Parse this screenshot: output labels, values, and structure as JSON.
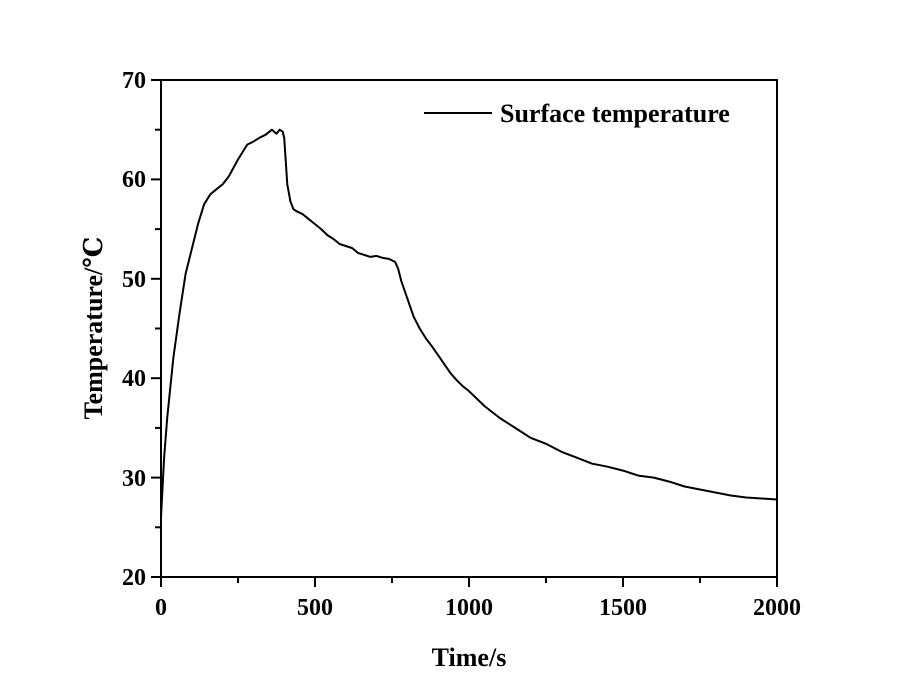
{
  "chart_data": {
    "type": "line",
    "xlabel": "Time/s",
    "ylabel": "Temperature/℃",
    "xlim": [
      0,
      2000
    ],
    "ylim": [
      20,
      70
    ],
    "x_ticks": [
      "0",
      "500",
      "1000",
      "1500",
      "2000"
    ],
    "y_ticks": [
      "20",
      "30",
      "40",
      "50",
      "60",
      "70"
    ],
    "grid": false,
    "legend_position": "top-right",
    "line_color": "#000000",
    "series": [
      {
        "name": "Surface temperature",
        "x": [
          0,
          10,
          20,
          40,
          60,
          80,
          100,
          120,
          140,
          160,
          180,
          200,
          220,
          250,
          280,
          300,
          320,
          340,
          360,
          375,
          385,
          395,
          400,
          410,
          420,
          430,
          440,
          460,
          480,
          500,
          520,
          540,
          560,
          580,
          600,
          620,
          640,
          660,
          680,
          700,
          720,
          740,
          760,
          770,
          780,
          800,
          820,
          840,
          860,
          880,
          900,
          920,
          940,
          960,
          980,
          1000,
          1050,
          1100,
          1150,
          1200,
          1250,
          1300,
          1350,
          1400,
          1450,
          1500,
          1550,
          1600,
          1650,
          1700,
          1750,
          1800,
          1850,
          1900,
          1950,
          2000
        ],
        "y": [
          26,
          32,
          36,
          42,
          46.5,
          50.5,
          53,
          55.5,
          57.5,
          58.5,
          59,
          59.5,
          60.3,
          62,
          63.5,
          63.8,
          64.2,
          64.5,
          65,
          64.6,
          65,
          64.8,
          64.2,
          59.5,
          57.8,
          57,
          56.8,
          56.5,
          56,
          55.5,
          55,
          54.4,
          54,
          53.5,
          53.3,
          53.1,
          52.6,
          52.4,
          52.2,
          52.3,
          52.1,
          52,
          51.7,
          51,
          49.8,
          48,
          46.2,
          45,
          44,
          43.2,
          42.3,
          41.4,
          40.5,
          39.8,
          39.2,
          38.7,
          37.2,
          36,
          35,
          34,
          33.4,
          32.6,
          32,
          31.4,
          31.1,
          30.7,
          30.2,
          30,
          29.6,
          29.1,
          28.8,
          28.5,
          28.2,
          28,
          27.9,
          27.8
        ]
      }
    ]
  }
}
